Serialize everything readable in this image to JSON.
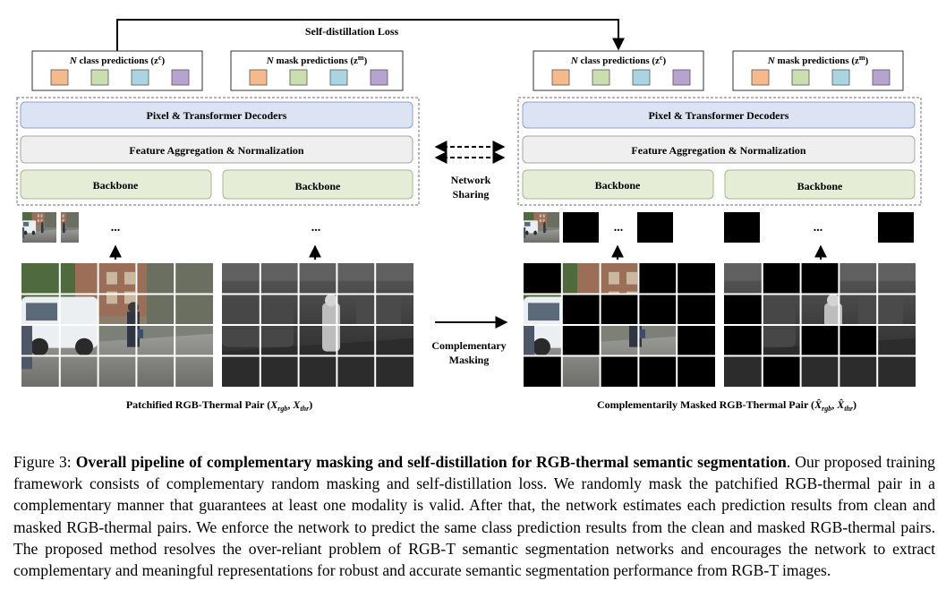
{
  "figure": {
    "loss_label": "Self-distillation Loss",
    "left_column": {
      "class_box": {
        "prefix": "N",
        "text": " class predictions (z",
        "sup": "c",
        "suffix": ")"
      },
      "mask_box": {
        "prefix": "N",
        "text": " mask predictions (z",
        "sup": "m",
        "suffix": ")"
      },
      "decoders": "Pixel & Transformer Decoders",
      "aggregation": "Feature Aggregation & Normalization",
      "backbone_rgb": "Backbone",
      "backbone_thr": "Backbone",
      "ellipsis": "...",
      "pair_caption": "Patchified RGB-Thermal Pair (",
      "pair_vars": "X",
      "pair_sub_rgb": "rgb",
      "pair_sub_thr": "thr"
    },
    "right_column": {
      "class_box": {
        "prefix": "N",
        "text": " class predictions (z",
        "sup": "c",
        "suffix": ")"
      },
      "mask_box": {
        "prefix": "N",
        "text": " mask predictions (z",
        "sup": "m",
        "suffix": ")"
      },
      "decoders": "Pixel & Transformer Decoders",
      "aggregation": "Feature Aggregation & Normalization",
      "backbone_rgb": "Backbone",
      "backbone_thr": "Backbone",
      "ellipsis": "...",
      "pair_caption": "Complementarily Masked RGB-Thermal Pair (",
      "pair_sub_rgb": "rgb",
      "pair_sub_thr": "thr"
    },
    "sharing_label_1": "Network",
    "sharing_label_2": "Sharing",
    "masking_label_1": "Complementary",
    "masking_label_2": "Masking",
    "token_colors": [
      "#f5b98a",
      "#c9dfb0",
      "#a9d5e2",
      "#b7a3cf"
    ],
    "colors": {
      "decoder_fill": "#dce4f4",
      "decoder_stroke": "#8fa1c8",
      "agg_fill": "#efefef",
      "agg_stroke": "#a6a6a6",
      "backbone_fill": "#e6edd6",
      "backbone_stroke": "#a7b78b"
    },
    "right_rgb_mask": [
      1,
      0,
      0,
      1,
      1,
      0,
      1,
      1,
      1,
      1,
      0,
      1,
      0,
      0,
      1,
      1,
      0,
      1,
      1,
      1
    ],
    "thermal_token_mask": [
      1,
      1,
      0,
      1,
      0
    ]
  },
  "caption": {
    "label": "Figure 3:",
    "title": "Overall pipeline of complementary masking and self-distillation for RGB-thermal semantic segmentation",
    "body": ". Our proposed training framework consists of complementary random masking and self-distillation loss. We randomly mask the patchified RGB-thermal pair in a complementary manner that guarantees at least one modality is valid. After that, the network estimates each prediction results from clean and masked RGB-thermal pairs. We enforce the network to predict the same class prediction results from the clean and masked RGB-thermal pairs. The proposed method resolves the over-reliant problem of RGB-T semantic segmentation networks and encourages the network to extract complementary and meaningful representations for robust and accurate semantic segmentation performance from RGB-T images."
  }
}
